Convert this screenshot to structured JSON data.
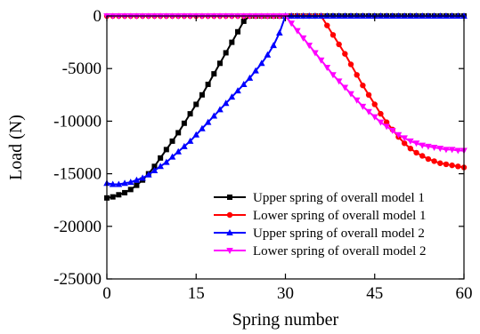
{
  "chart_data": {
    "type": "line",
    "title": "",
    "xlabel": "Spring number",
    "ylabel": "Load (N)",
    "xlim": [
      0,
      60
    ],
    "ylim": [
      -25000,
      0
    ],
    "x_ticks": [
      0,
      15,
      30,
      45,
      60
    ],
    "y_ticks": [
      0,
      -5000,
      -10000,
      -15000,
      -20000,
      -25000
    ],
    "x_tick_labels": [
      "0",
      "15",
      "30",
      "45",
      "60"
    ],
    "y_tick_labels": [
      "0",
      "-5000",
      "-10000",
      "-15000",
      "-20000",
      "-25000"
    ],
    "grid": false,
    "legend_position": "bottom-right",
    "series": [
      {
        "name": "Upper spring of overall model 1",
        "color": "#000000",
        "marker": "square",
        "x": [
          0,
          1,
          2,
          3,
          4,
          5,
          6,
          7,
          8,
          9,
          10,
          11,
          12,
          13,
          14,
          15,
          16,
          17,
          18,
          19,
          20,
          21,
          22,
          23,
          24,
          25,
          26,
          27,
          28,
          29,
          30,
          31,
          32,
          33,
          34,
          35,
          36,
          37,
          38,
          39,
          40,
          41,
          42,
          43,
          44,
          45,
          46,
          47,
          48,
          49,
          50,
          51,
          52,
          53,
          54,
          55,
          56,
          57,
          58,
          59,
          60
        ],
        "values": [
          -17300,
          -17200,
          -17000,
          -16800,
          -16500,
          -16100,
          -15600,
          -15000,
          -14300,
          -13500,
          -12700,
          -11900,
          -11100,
          -10200,
          -9300,
          -8400,
          -7500,
          -6500,
          -5500,
          -4500,
          -3500,
          -2500,
          -1500,
          -500,
          0,
          0,
          0,
          0,
          0,
          0,
          0,
          0,
          0,
          0,
          0,
          0,
          0,
          0,
          0,
          0,
          0,
          0,
          0,
          0,
          0,
          0,
          0,
          0,
          0,
          0,
          0,
          0,
          0,
          0,
          0,
          0,
          0,
          0,
          0,
          0,
          0
        ]
      },
      {
        "name": "Lower spring of overall model 1",
        "color": "#ff0000",
        "marker": "circle",
        "x": [
          0,
          1,
          2,
          3,
          4,
          5,
          6,
          7,
          8,
          9,
          10,
          11,
          12,
          13,
          14,
          15,
          16,
          17,
          18,
          19,
          20,
          21,
          22,
          23,
          24,
          25,
          26,
          27,
          28,
          29,
          30,
          31,
          32,
          33,
          34,
          35,
          36,
          37,
          38,
          39,
          40,
          41,
          42,
          43,
          44,
          45,
          46,
          47,
          48,
          49,
          50,
          51,
          52,
          53,
          54,
          55,
          56,
          57,
          58,
          59,
          60
        ],
        "values": [
          0,
          0,
          0,
          0,
          0,
          0,
          0,
          0,
          0,
          0,
          0,
          0,
          0,
          0,
          0,
          0,
          0,
          0,
          0,
          0,
          0,
          0,
          0,
          0,
          0,
          0,
          0,
          0,
          0,
          0,
          0,
          0,
          0,
          0,
          0,
          0,
          0,
          -900,
          -1800,
          -2700,
          -3600,
          -4600,
          -5600,
          -6600,
          -7500,
          -8400,
          -9300,
          -10100,
          -10800,
          -11500,
          -12100,
          -12600,
          -13000,
          -13300,
          -13600,
          -13800,
          -14000,
          -14100,
          -14200,
          -14300,
          -14400
        ]
      },
      {
        "name": "Upper spring of overall model 2",
        "color": "#0000ff",
        "marker": "triangle-up",
        "x": [
          0,
          1,
          2,
          3,
          4,
          5,
          6,
          7,
          8,
          9,
          10,
          11,
          12,
          13,
          14,
          15,
          16,
          17,
          18,
          19,
          20,
          21,
          22,
          23,
          24,
          25,
          26,
          27,
          28,
          29,
          30,
          31,
          32,
          33,
          34,
          35,
          36,
          37,
          38,
          39,
          40,
          41,
          42,
          43,
          44,
          45,
          46,
          47,
          48,
          49,
          50,
          51,
          52,
          53,
          54,
          55,
          56,
          57,
          58,
          59,
          60
        ],
        "values": [
          -15900,
          -16000,
          -16000,
          -15900,
          -15800,
          -15600,
          -15400,
          -15100,
          -14700,
          -14300,
          -13900,
          -13400,
          -12900,
          -12400,
          -11900,
          -11300,
          -10700,
          -10100,
          -9500,
          -8900,
          -8300,
          -7700,
          -7100,
          -6500,
          -5900,
          -5200,
          -4500,
          -3700,
          -2800,
          -1600,
          0,
          0,
          0,
          0,
          0,
          0,
          0,
          0,
          0,
          0,
          0,
          0,
          0,
          0,
          0,
          0,
          0,
          0,
          0,
          0,
          0,
          0,
          0,
          0,
          0,
          0,
          0,
          0,
          0,
          0,
          0
        ]
      },
      {
        "name": "Lower spring of overall model 2",
        "color": "#ff00ff",
        "marker": "triangle-down",
        "x": [
          0,
          1,
          2,
          3,
          4,
          5,
          6,
          7,
          8,
          9,
          10,
          11,
          12,
          13,
          14,
          15,
          16,
          17,
          18,
          19,
          20,
          21,
          22,
          23,
          24,
          25,
          26,
          27,
          28,
          29,
          30,
          31,
          32,
          33,
          34,
          35,
          36,
          37,
          38,
          39,
          40,
          41,
          42,
          43,
          44,
          45,
          46,
          47,
          48,
          49,
          50,
          51,
          52,
          53,
          54,
          55,
          56,
          57,
          58,
          59,
          60
        ],
        "values": [
          0,
          0,
          0,
          0,
          0,
          0,
          0,
          0,
          0,
          0,
          0,
          0,
          0,
          0,
          0,
          0,
          0,
          0,
          0,
          0,
          0,
          0,
          0,
          0,
          0,
          0,
          0,
          0,
          0,
          0,
          0,
          -700,
          -1400,
          -2100,
          -2800,
          -3500,
          -4200,
          -4900,
          -5600,
          -6200,
          -6800,
          -7400,
          -8000,
          -8600,
          -9100,
          -9600,
          -10100,
          -10500,
          -10900,
          -11300,
          -11600,
          -11900,
          -12100,
          -12300,
          -12400,
          -12500,
          -12600,
          -12700,
          -12700,
          -12800,
          -12800
        ]
      }
    ]
  }
}
